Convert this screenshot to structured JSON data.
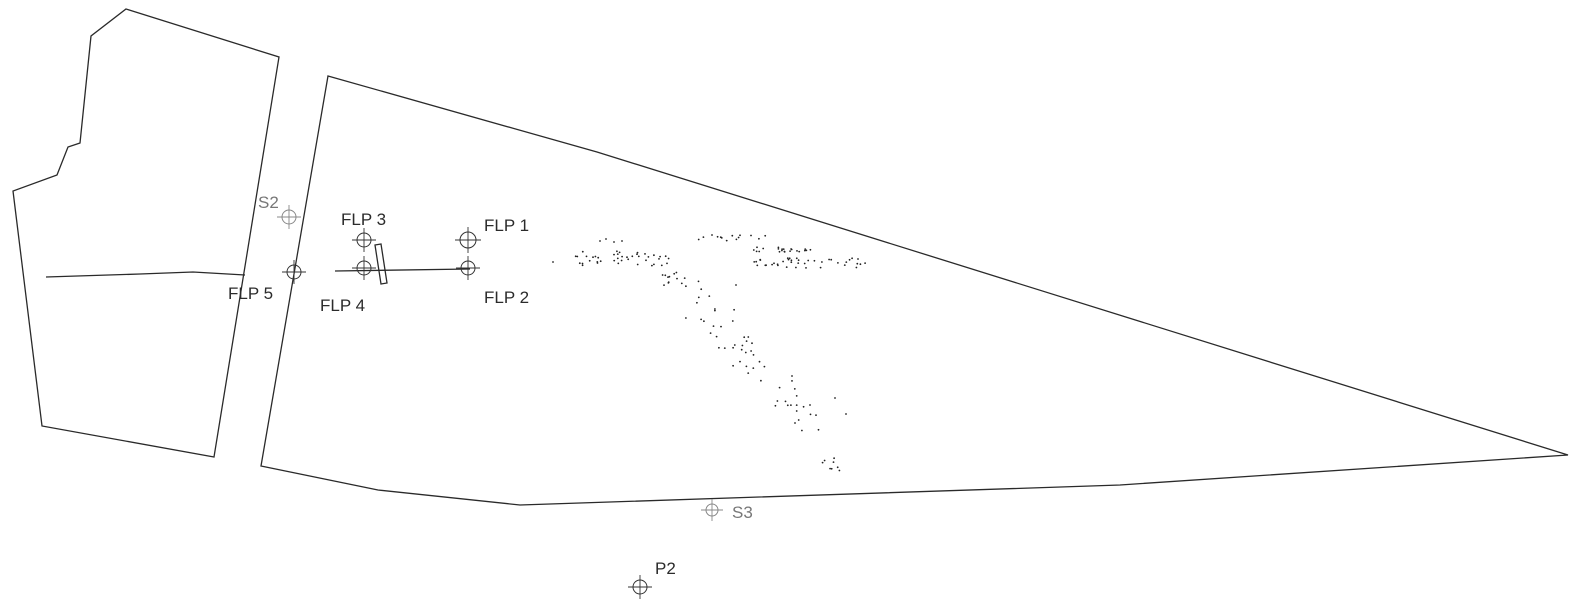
{
  "markers": [
    {
      "id": "flp1",
      "label": "FLP 1",
      "style": "dark"
    },
    {
      "id": "flp2",
      "label": "FLP 2",
      "style": "dark"
    },
    {
      "id": "flp3",
      "label": "FLP 3",
      "style": "dark"
    },
    {
      "id": "flp4",
      "label": "FLP 4",
      "style": "dark"
    },
    {
      "id": "flp5",
      "label": "FLP 5",
      "style": "dark"
    },
    {
      "id": "s2",
      "label": "S2",
      "style": "light"
    },
    {
      "id": "s3",
      "label": "S3",
      "style": "light"
    },
    {
      "id": "p2",
      "label": "P2",
      "style": "dark"
    }
  ],
  "colors": {
    "line": "#2a2a2a",
    "label_dark": "#2b2b2b",
    "label_light": "#777777"
  }
}
